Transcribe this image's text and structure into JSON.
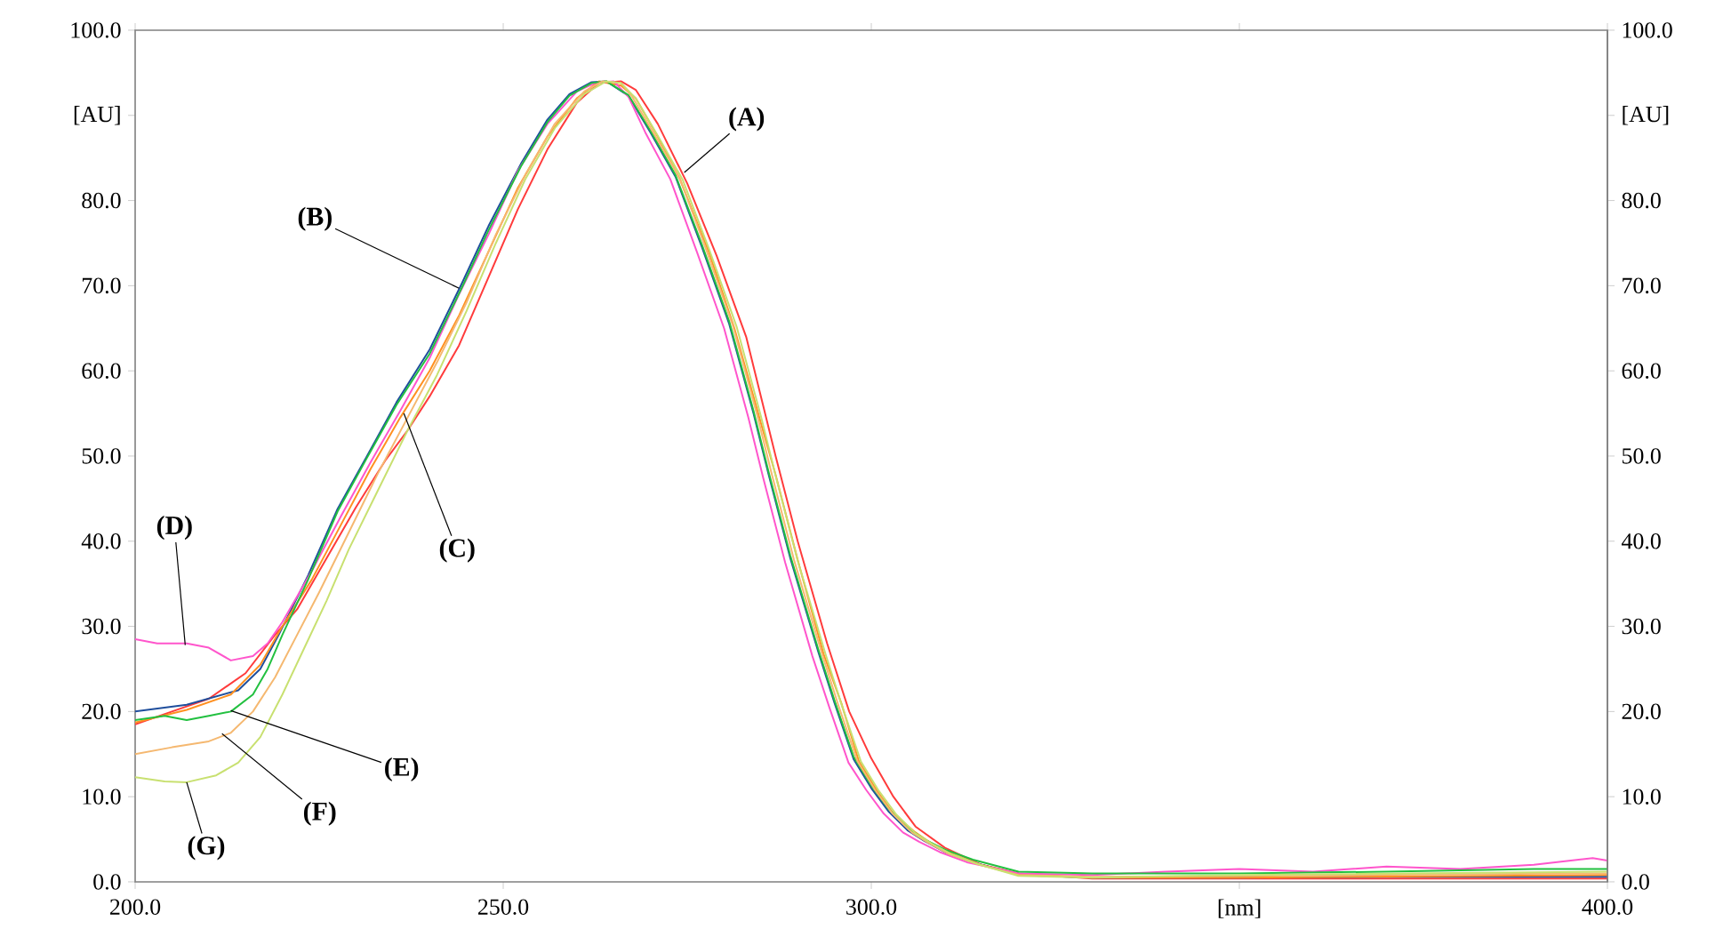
{
  "chart_data": {
    "type": "line",
    "xlim": [
      200,
      400
    ],
    "ylim": [
      0,
      100
    ],
    "y2lim": [
      0,
      100
    ],
    "xticks": [
      {
        "value": 200,
        "label": "200.0"
      },
      {
        "value": 250,
        "label": "250.0"
      },
      {
        "value": 300,
        "label": "300.0"
      },
      {
        "value": 350,
        "label": "[nm]"
      },
      {
        "value": 400,
        "label": "400.0"
      }
    ],
    "yticks": [
      {
        "value": 0,
        "label": "0.0"
      },
      {
        "value": 10,
        "label": "10.0"
      },
      {
        "value": 20,
        "label": "20.0"
      },
      {
        "value": 30,
        "label": "30.0"
      },
      {
        "value": 40,
        "label": "40.0"
      },
      {
        "value": 50,
        "label": "50.0"
      },
      {
        "value": 60,
        "label": "60.0"
      },
      {
        "value": 70,
        "label": "70.0"
      },
      {
        "value": 80,
        "label": "80.0"
      },
      {
        "value": 90,
        "label": "[AU]"
      },
      {
        "value": 100,
        "label": "100.0"
      }
    ],
    "y2ticks": [
      {
        "value": 0,
        "label": "0.0"
      },
      {
        "value": 10,
        "label": "10.0"
      },
      {
        "value": 20,
        "label": "20.0"
      },
      {
        "value": 30,
        "label": "30.0"
      },
      {
        "value": 40,
        "label": "40.0"
      },
      {
        "value": 50,
        "label": "50.0"
      },
      {
        "value": 60,
        "label": "60.0"
      },
      {
        "value": 70,
        "label": "70.0"
      },
      {
        "value": 80,
        "label": "80.0"
      },
      {
        "value": 90,
        "label": "[AU]"
      },
      {
        "value": 100,
        "label": "100.0"
      }
    ],
    "series": [
      {
        "color": "#ff3b3b",
        "x": [
          200,
          205,
          210,
          215,
          219,
          222,
          226,
          230,
          234,
          237,
          240,
          244,
          248,
          252,
          256,
          260,
          263,
          266,
          268,
          271,
          275,
          279,
          283,
          287,
          290,
          294,
          297,
          300,
          303,
          306,
          310,
          315,
          320,
          330,
          350,
          400
        ],
        "values": [
          18.5,
          20,
          21.5,
          24.5,
          29,
          32,
          38,
          44,
          49.5,
          53,
          57,
          63,
          71,
          79,
          86,
          91.5,
          93.8,
          94,
          93,
          89,
          82,
          73.5,
          64,
          50,
          40,
          28,
          20,
          14.5,
          10,
          6.5,
          4,
          2,
          1,
          0.4,
          0.4,
          0.4
        ]
      },
      {
        "color": "#1f4e9c",
        "x": [
          200,
          207,
          214,
          217,
          219.5,
          223.5,
          227.5,
          231.5,
          235.5,
          240,
          244.4,
          248,
          252.4,
          256,
          259,
          262,
          264,
          267,
          270,
          273.4,
          277,
          280.7,
          284,
          286,
          289,
          292.8,
          295,
          297.6,
          300,
          302.4,
          305,
          307.2,
          310,
          313.8,
          320,
          330,
          350,
          370,
          400
        ],
        "values": [
          20,
          20.8,
          22.5,
          25,
          29,
          36,
          43.8,
          50,
          56.3,
          62.5,
          70.3,
          77,
          84.3,
          89.5,
          92.5,
          93.9,
          94,
          92.3,
          88,
          82.8,
          74.5,
          65.5,
          55,
          48,
          38,
          27,
          21,
          14.4,
          11,
          8.2,
          6,
          4.8,
          3.5,
          2.3,
          0.8,
          0.5,
          0.5,
          0.6,
          0.6
        ]
      },
      {
        "color": "#ff9020",
        "x": [
          200,
          207,
          213,
          217,
          220,
          224,
          228,
          232,
          236,
          240,
          244,
          248,
          252,
          256,
          260,
          263,
          266,
          268,
          271,
          274,
          278,
          281.4,
          284.7,
          287,
          290,
          293.5,
          296,
          298.3,
          300.7,
          303,
          306,
          308,
          311,
          314.5,
          320,
          330,
          350,
          400
        ],
        "values": [
          18.7,
          20.2,
          22,
          25.5,
          30,
          35.5,
          42,
          48.5,
          54.5,
          60,
          66.5,
          74,
          81.5,
          87.5,
          92,
          94,
          93.5,
          92,
          87.5,
          82.5,
          73.8,
          65,
          54.8,
          47.8,
          37.8,
          26.8,
          20.8,
          14.2,
          10.8,
          8,
          5.8,
          4.6,
          3.3,
          2.1,
          0.9,
          0.5,
          0.5,
          0.8
        ]
      },
      {
        "color": "#ff55cc",
        "x": [
          200,
          203,
          207,
          210,
          213,
          216,
          218,
          220,
          224,
          228,
          232,
          236,
          240,
          244,
          248,
          252,
          256,
          260,
          262.5,
          265,
          267,
          269.3,
          272.7,
          276.3,
          280,
          283.3,
          285.3,
          288.3,
          292,
          294.3,
          296.9,
          299.3,
          301.7,
          304.3,
          306.5,
          309.3,
          313,
          320,
          330,
          340,
          350,
          360,
          370,
          380,
          390,
          398,
          400
        ],
        "values": [
          28.5,
          28,
          28,
          27.5,
          26,
          26.5,
          28,
          30.5,
          36.5,
          43,
          49.3,
          55.3,
          61.5,
          69,
          76,
          83.5,
          89,
          92.8,
          93.8,
          94,
          92.2,
          88,
          82.5,
          74,
          65,
          54.5,
          47.5,
          37.5,
          26.5,
          20.5,
          14,
          10.8,
          8,
          5.8,
          4.7,
          3.5,
          2.3,
          1,
          0.8,
          1.2,
          1.5,
          1.2,
          1.8,
          1.5,
          2,
          2.8,
          2.5
        ]
      },
      {
        "color": "#22c040",
        "x": [
          200,
          204,
          207,
          210,
          213,
          216,
          218,
          220,
          223.5,
          227.5,
          231.5,
          235.5,
          240,
          244.4,
          248,
          252.4,
          256,
          259,
          262,
          264,
          267,
          270,
          273.4,
          277,
          280.7,
          284,
          286,
          289,
          292.8,
          295,
          297.6,
          300,
          302.4,
          305,
          307.2,
          310,
          313.8,
          320,
          330,
          350,
          370,
          390,
          400
        ],
        "values": [
          19,
          19.5,
          19,
          19.5,
          20,
          22,
          25,
          29,
          35.5,
          43.5,
          49.8,
          56,
          62,
          69.8,
          76.5,
          84,
          89.2,
          92.3,
          93.8,
          94,
          92.4,
          88.2,
          83,
          74.8,
          65.8,
          55.3,
          48.3,
          38.3,
          27.3,
          21.3,
          14.7,
          11.3,
          8.5,
          6.3,
          5,
          3.8,
          2.6,
          1.2,
          1,
          1,
          1.2,
          1.5,
          1.5
        ]
      },
      {
        "color": "#f5b870",
        "x": [
          200,
          205,
          210,
          213,
          216,
          219,
          222,
          225,
          229,
          233,
          237,
          241,
          245,
          249,
          253,
          257,
          261,
          263.5,
          266,
          267.5,
          270.5,
          274,
          277.5,
          281.2,
          284.5,
          286.5,
          289.5,
          293.3,
          295.5,
          298.1,
          300.5,
          302.9,
          305.5,
          307.7,
          310.5,
          314.3,
          320,
          330,
          350,
          400
        ],
        "values": [
          15,
          15.8,
          16.5,
          17.5,
          20,
          24,
          29,
          34,
          41,
          48,
          54.5,
          61,
          68,
          76,
          83,
          89,
          92.8,
          94,
          93.8,
          92.2,
          87.8,
          82.6,
          74.4,
          65.3,
          54.8,
          47.8,
          37.8,
          26.8,
          20.8,
          14.2,
          10.8,
          8,
          5.8,
          4.6,
          3.3,
          2.1,
          0.8,
          0.6,
          0.7,
          1
        ]
      },
      {
        "color": "#c8e070",
        "x": [
          200,
          204,
          207,
          211,
          214,
          217,
          220,
          223,
          226,
          229,
          233,
          237,
          241,
          245,
          249,
          253,
          257,
          261,
          264,
          266,
          268,
          271,
          274.4,
          278,
          281.7,
          285,
          287,
          290,
          293.8,
          296,
          298.6,
          301,
          303.4,
          306,
          308.2,
          311,
          314.8,
          320,
          330,
          350,
          400
        ],
        "values": [
          12.3,
          11.8,
          11.7,
          12.5,
          14,
          17,
          22,
          27.5,
          33,
          39,
          46,
          53,
          59.5,
          67,
          75,
          82.5,
          88.5,
          92.5,
          94,
          93.8,
          92,
          87.6,
          82.4,
          74.2,
          65.2,
          54.7,
          47.7,
          37.7,
          26.7,
          20.7,
          14.1,
          10.7,
          7.9,
          5.7,
          4.5,
          3.2,
          2,
          0.7,
          0.5,
          0.8,
          1.2
        ]
      }
    ],
    "annotations": [
      {
        "text": "(A)",
        "x": 274.6,
        "y": 83.3
      },
      {
        "text": "(B)",
        "x": 244,
        "y": 69.7
      },
      {
        "text": "(C)",
        "x": 236.5,
        "y": 55
      },
      {
        "text": "(D)",
        "x": 206.8,
        "y": 27.8
      },
      {
        "text": "(E)",
        "x": 213,
        "y": 20.1
      },
      {
        "text": "(F)",
        "x": 211.8,
        "y": 17.4
      },
      {
        "text": "(G)",
        "x": 207,
        "y": 11.7
      }
    ]
  }
}
